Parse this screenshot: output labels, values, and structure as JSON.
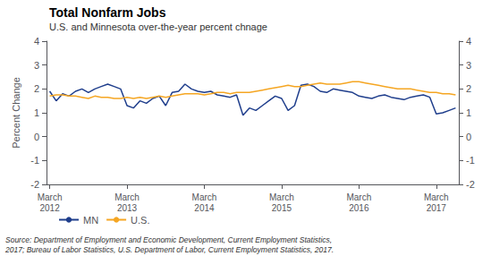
{
  "chart_data": {
    "type": "line",
    "title": "Total Nonfarm Jobs",
    "subtitle": "U.S. and Minnesota over-the-year percent chnage",
    "ylabel": "Percent Change",
    "annotations": [
      "Source: Department of Employment and Economic Development, Current Employment Statistics,\n2017; Bureau of Labor Statistics, U.S. Department of Labor, Current Employment Statistics, 2017."
    ],
    "categories": [
      "March\n2012",
      null,
      null,
      null,
      null,
      null,
      null,
      null,
      null,
      null,
      null,
      null,
      "March\n2013",
      null,
      null,
      null,
      null,
      null,
      null,
      null,
      null,
      null,
      null,
      null,
      "March\n2014",
      null,
      null,
      null,
      null,
      null,
      null,
      null,
      null,
      null,
      null,
      null,
      "March\n2015",
      null,
      null,
      null,
      null,
      null,
      null,
      null,
      null,
      null,
      null,
      null,
      "March\n2016",
      null,
      null,
      null,
      null,
      null,
      null,
      null,
      null,
      null,
      null,
      null,
      "March\n2017",
      null,
      null,
      null
    ],
    "series": [
      {
        "name": "MN",
        "color": "#1f3e8c",
        "values": [
          1.9,
          1.5,
          1.8,
          1.7,
          1.9,
          2.0,
          1.85,
          2.0,
          2.1,
          2.2,
          2.1,
          2.0,
          1.3,
          1.2,
          1.5,
          1.4,
          1.6,
          1.7,
          1.3,
          1.85,
          1.9,
          2.2,
          2.0,
          1.9,
          1.85,
          1.9,
          1.75,
          1.7,
          1.65,
          1.75,
          0.9,
          1.2,
          1.1,
          1.3,
          1.5,
          1.7,
          1.6,
          1.1,
          1.3,
          2.15,
          2.2,
          2.1,
          1.9,
          1.85,
          2.0,
          1.95,
          1.9,
          1.85,
          1.7,
          1.65,
          1.6,
          1.7,
          1.75,
          1.65,
          1.6,
          1.55,
          1.65,
          1.7,
          1.75,
          1.65,
          0.95,
          1.0,
          1.1,
          1.2
        ]
      },
      {
        "name": "U.S.",
        "color": "#f5a623",
        "values": [
          1.7,
          1.75,
          1.75,
          1.7,
          1.7,
          1.65,
          1.6,
          1.7,
          1.65,
          1.65,
          1.6,
          1.6,
          1.65,
          1.6,
          1.65,
          1.6,
          1.65,
          1.7,
          1.65,
          1.7,
          1.75,
          1.8,
          1.8,
          1.8,
          1.75,
          1.8,
          1.85,
          1.85,
          1.8,
          1.85,
          1.85,
          1.85,
          1.9,
          1.95,
          2.0,
          2.05,
          2.1,
          2.15,
          2.1,
          2.1,
          2.15,
          2.2,
          2.25,
          2.2,
          2.2,
          2.2,
          2.25,
          2.3,
          2.3,
          2.25,
          2.2,
          2.15,
          2.1,
          2.05,
          2.0,
          2.0,
          2.0,
          1.95,
          1.9,
          1.85,
          1.85,
          1.8,
          1.8,
          1.75
        ]
      }
    ],
    "ylim": [
      -2,
      4
    ],
    "yticks": [
      -2,
      -1,
      0,
      1,
      2,
      3,
      4
    ],
    "y2lim": [
      -2,
      4
    ],
    "y2ticks": [
      -2,
      -1,
      0,
      1,
      2,
      3,
      4
    ],
    "legend": "bottom",
    "grid": false
  }
}
